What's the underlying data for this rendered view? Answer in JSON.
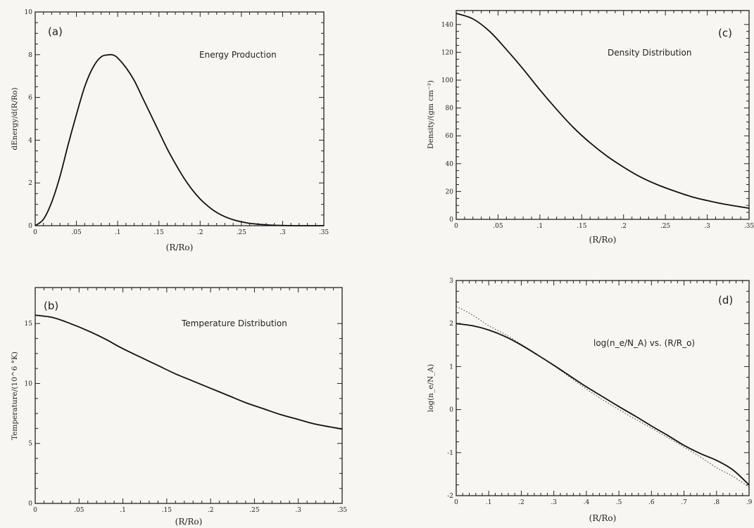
{
  "chart_data": [
    {
      "type": "line",
      "panel": "(a)",
      "title": "Energy Production",
      "xlabel": "(R/Ro)",
      "ylabel": "dEnergy/d(R/Ro)",
      "xlim": [
        0,
        0.35
      ],
      "ylim": [
        0,
        10
      ],
      "x_ticks": [
        0,
        0.05,
        0.1,
        0.15,
        0.2,
        0.25,
        0.3,
        0.35
      ],
      "x_tick_labels": [
        "0",
        ".05",
        ".1",
        ".15",
        ".2",
        ".25",
        ".3",
        ".35"
      ],
      "y_ticks": [
        0,
        2,
        4,
        6,
        8,
        10
      ],
      "y_tick_labels": [
        "0",
        "2",
        "4",
        "6",
        "8",
        "10"
      ],
      "series": [
        {
          "x": [
            0,
            0.01,
            0.02,
            0.03,
            0.04,
            0.05,
            0.06,
            0.07,
            0.08,
            0.09,
            0.095,
            0.1,
            0.11,
            0.12,
            0.13,
            0.14,
            0.15,
            0.16,
            0.17,
            0.18,
            0.19,
            0.2,
            0.21,
            0.22,
            0.23,
            0.24,
            0.25,
            0.26,
            0.27,
            0.28,
            0.29,
            0.3,
            0.32,
            0.35
          ],
          "y": [
            0,
            0.3,
            1.1,
            2.3,
            3.8,
            5.2,
            6.5,
            7.4,
            7.9,
            8.0,
            7.98,
            7.85,
            7.4,
            6.8,
            6.0,
            5.2,
            4.4,
            3.6,
            2.9,
            2.25,
            1.7,
            1.25,
            0.9,
            0.62,
            0.42,
            0.28,
            0.18,
            0.11,
            0.07,
            0.04,
            0.02,
            0.01,
            0.0,
            0.0
          ]
        }
      ]
    },
    {
      "type": "line",
      "panel": "(b)",
      "title": "Temperature Distribution",
      "xlabel": "(R/Ro)",
      "ylabel": "Temperature/(10^6 °K)",
      "xlim": [
        0,
        0.35
      ],
      "ylim": [
        0,
        18
      ],
      "x_ticks": [
        0,
        0.05,
        0.1,
        0.15,
        0.2,
        0.25,
        0.3,
        0.35
      ],
      "x_tick_labels": [
        "0",
        ".05",
        ".1",
        ".15",
        ".2",
        ".25",
        ".3",
        ".35"
      ],
      "y_ticks": [
        0,
        5,
        10,
        15
      ],
      "y_tick_labels": [
        "0",
        "5",
        "10",
        "15"
      ],
      "series": [
        {
          "x": [
            0,
            0.02,
            0.04,
            0.06,
            0.08,
            0.1,
            0.12,
            0.14,
            0.16,
            0.18,
            0.2,
            0.22,
            0.24,
            0.26,
            0.28,
            0.3,
            0.32,
            0.35
          ],
          "y": [
            15.7,
            15.5,
            15.0,
            14.4,
            13.7,
            12.9,
            12.2,
            11.5,
            10.8,
            10.2,
            9.6,
            9.0,
            8.4,
            7.9,
            7.4,
            7.0,
            6.6,
            6.2
          ]
        }
      ]
    },
    {
      "type": "line",
      "panel": "(c)",
      "title": "Density Distribution",
      "xlabel": "(R/Ro)",
      "ylabel": "Density/(gm cm⁻³)",
      "xlim": [
        0,
        0.35
      ],
      "ylim": [
        0,
        150
      ],
      "x_ticks": [
        0,
        0.05,
        0.1,
        0.15,
        0.2,
        0.25,
        0.3,
        0.35
      ],
      "x_tick_labels": [
        "0",
        ".05",
        ".1",
        ".15",
        ".2",
        ".25",
        ".3",
        ".35"
      ],
      "y_ticks": [
        0,
        20,
        40,
        60,
        80,
        100,
        120,
        140
      ],
      "y_tick_labels": [
        "0",
        "20",
        "40",
        "60",
        "80",
        "100",
        "120",
        "140"
      ],
      "series": [
        {
          "x": [
            0,
            0.02,
            0.04,
            0.06,
            0.08,
            0.1,
            0.12,
            0.14,
            0.16,
            0.18,
            0.2,
            0.22,
            0.24,
            0.26,
            0.28,
            0.3,
            0.32,
            0.35
          ],
          "y": [
            148,
            144,
            135,
            122,
            108,
            93,
            79,
            66,
            55,
            45.5,
            37.5,
            30.5,
            25,
            20.5,
            16.5,
            13.5,
            11,
            8
          ]
        }
      ]
    },
    {
      "type": "line",
      "panel": "(d)",
      "title": "log(n_e/N_A) vs. (R/R_o)",
      "xlabel": "(R/Ro)",
      "ylabel": "log(n_e/N_A)",
      "xlim": [
        0,
        0.9
      ],
      "ylim": [
        -2,
        3
      ],
      "x_ticks": [
        0,
        0.1,
        0.2,
        0.3,
        0.4,
        0.5,
        0.6,
        0.7,
        0.8,
        0.9
      ],
      "x_tick_labels": [
        "0",
        ".1",
        ".2",
        ".3",
        ".4",
        ".5",
        ".6",
        ".7",
        ".8",
        ".9"
      ],
      "y_ticks": [
        -2,
        -1,
        0,
        1,
        2,
        3
      ],
      "y_tick_labels": [
        "-2",
        "-1",
        "0",
        "1",
        "2",
        "3"
      ],
      "series": [
        {
          "style": "solid",
          "x": [
            0,
            0.05,
            0.1,
            0.15,
            0.2,
            0.25,
            0.3,
            0.35,
            0.4,
            0.45,
            0.5,
            0.55,
            0.6,
            0.65,
            0.7,
            0.75,
            0.8,
            0.85,
            0.9
          ],
          "y": [
            2.0,
            1.95,
            1.85,
            1.7,
            1.5,
            1.27,
            1.03,
            0.78,
            0.53,
            0.3,
            0.07,
            -0.15,
            -0.38,
            -0.6,
            -0.83,
            -1.02,
            -1.18,
            -1.4,
            -1.75
          ]
        },
        {
          "style": "dotted",
          "x": [
            0,
            0.05,
            0.1,
            0.15,
            0.2,
            0.25,
            0.3,
            0.35,
            0.4,
            0.45,
            0.5,
            0.55,
            0.6,
            0.65,
            0.7,
            0.75,
            0.8,
            0.85,
            0.9
          ],
          "y": [
            2.4,
            2.2,
            1.95,
            1.75,
            1.52,
            1.28,
            1.02,
            0.75,
            0.48,
            0.23,
            0.0,
            -0.22,
            -0.43,
            -0.65,
            -0.87,
            -1.1,
            -1.35,
            -1.55,
            -1.8
          ]
        }
      ]
    }
  ]
}
